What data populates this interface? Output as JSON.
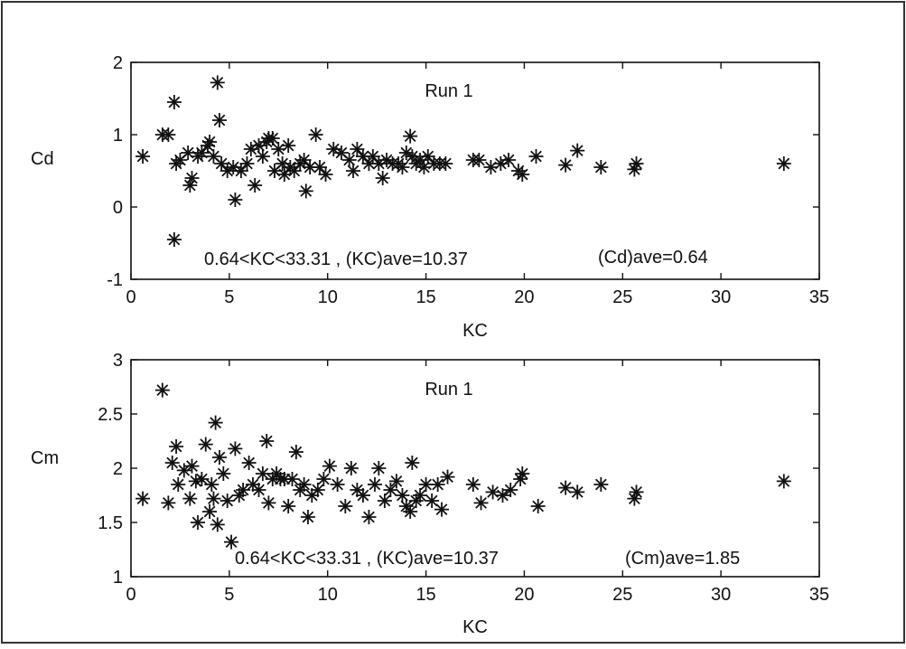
{
  "chart_data": [
    {
      "type": "scatter",
      "title": "Run 1",
      "xlabel": "KC",
      "ylabel": "Cd",
      "xlim": [
        0,
        35
      ],
      "ylim": [
        -1,
        2
      ],
      "xticks": [
        "0",
        "5",
        "10",
        "15",
        "20",
        "25",
        "30",
        "35"
      ],
      "yticks": [
        "-1",
        "0",
        "1",
        "2"
      ],
      "annotations": [
        "0.64<KC<33.31 , (KC)ave=10.37",
        "(Cd)ave=0.64"
      ],
      "grid": false,
      "marker": "asterisk",
      "points": [
        [
          0.6,
          0.7
        ],
        [
          1.6,
          1.0
        ],
        [
          1.9,
          1.0
        ],
        [
          2.2,
          1.45
        ],
        [
          2.3,
          0.6
        ],
        [
          2.2,
          -0.45
        ],
        [
          2.5,
          0.65
        ],
        [
          2.9,
          0.75
        ],
        [
          3.0,
          0.3
        ],
        [
          3.1,
          0.4
        ],
        [
          3.4,
          0.7
        ],
        [
          3.6,
          0.75
        ],
        [
          3.9,
          0.85
        ],
        [
          4.0,
          0.9
        ],
        [
          4.2,
          0.7
        ],
        [
          4.4,
          1.72
        ],
        [
          4.5,
          1.2
        ],
        [
          4.6,
          0.6
        ],
        [
          4.9,
          0.5
        ],
        [
          5.2,
          0.55
        ],
        [
          5.3,
          0.1
        ],
        [
          5.6,
          0.5
        ],
        [
          5.9,
          0.6
        ],
        [
          6.1,
          0.8
        ],
        [
          6.3,
          0.3
        ],
        [
          6.5,
          0.85
        ],
        [
          6.7,
          0.7
        ],
        [
          6.9,
          0.9
        ],
        [
          7.0,
          0.95
        ],
        [
          7.2,
          0.95
        ],
        [
          7.3,
          0.5
        ],
        [
          7.5,
          0.8
        ],
        [
          7.7,
          0.6
        ],
        [
          7.8,
          0.45
        ],
        [
          8.0,
          0.85
        ],
        [
          8.1,
          0.55
        ],
        [
          8.3,
          0.5
        ],
        [
          8.6,
          0.6
        ],
        [
          8.8,
          0.65
        ],
        [
          8.9,
          0.22
        ],
        [
          9.1,
          0.55
        ],
        [
          9.4,
          1.0
        ],
        [
          9.6,
          0.55
        ],
        [
          9.9,
          0.45
        ],
        [
          10.3,
          0.8
        ],
        [
          10.7,
          0.75
        ],
        [
          11.1,
          0.65
        ],
        [
          11.3,
          0.5
        ],
        [
          11.5,
          0.8
        ],
        [
          11.8,
          0.7
        ],
        [
          12.1,
          0.6
        ],
        [
          12.3,
          0.7
        ],
        [
          12.6,
          0.6
        ],
        [
          12.8,
          0.4
        ],
        [
          13.0,
          0.65
        ],
        [
          13.3,
          0.6
        ],
        [
          13.6,
          0.6
        ],
        [
          13.8,
          0.55
        ],
        [
          14.0,
          0.75
        ],
        [
          14.2,
          0.98
        ],
        [
          14.3,
          0.7
        ],
        [
          14.5,
          0.6
        ],
        [
          14.7,
          0.65
        ],
        [
          14.9,
          0.55
        ],
        [
          15.1,
          0.7
        ],
        [
          15.4,
          0.6
        ],
        [
          15.7,
          0.6
        ],
        [
          16.0,
          0.6
        ],
        [
          17.4,
          0.65
        ],
        [
          17.7,
          0.65
        ],
        [
          18.3,
          0.55
        ],
        [
          18.8,
          0.6
        ],
        [
          19.2,
          0.65
        ],
        [
          19.7,
          0.5
        ],
        [
          19.9,
          0.45
        ],
        [
          20.6,
          0.7
        ],
        [
          22.1,
          0.58
        ],
        [
          22.7,
          0.78
        ],
        [
          23.9,
          0.55
        ],
        [
          25.6,
          0.52
        ],
        [
          25.7,
          0.6
        ],
        [
          33.2,
          0.6
        ]
      ]
    },
    {
      "type": "scatter",
      "title": "Run 1",
      "xlabel": "KC",
      "ylabel": "Cm",
      "xlim": [
        0,
        35
      ],
      "ylim": [
        1,
        3
      ],
      "xticks": [
        "0",
        "5",
        "10",
        "15",
        "20",
        "25",
        "30",
        "35"
      ],
      "yticks": [
        "1",
        "1.5",
        "2",
        "2.5",
        "3"
      ],
      "annotations": [
        "0.64<KC<33.31 , (KC)ave=10.37",
        "(Cm)ave=1.85"
      ],
      "grid": false,
      "marker": "asterisk",
      "points": [
        [
          0.6,
          1.72
        ],
        [
          1.6,
          2.72
        ],
        [
          1.9,
          1.68
        ],
        [
          2.1,
          2.05
        ],
        [
          2.3,
          2.2
        ],
        [
          2.4,
          1.85
        ],
        [
          2.7,
          1.98
        ],
        [
          3.0,
          1.72
        ],
        [
          3.1,
          2.02
        ],
        [
          3.3,
          1.88
        ],
        [
          3.4,
          1.5
        ],
        [
          3.6,
          1.9
        ],
        [
          3.8,
          2.22
        ],
        [
          4.0,
          1.6
        ],
        [
          4.1,
          1.85
        ],
        [
          4.2,
          1.72
        ],
        [
          4.3,
          2.42
        ],
        [
          4.4,
          1.48
        ],
        [
          4.5,
          2.1
        ],
        [
          4.7,
          1.95
        ],
        [
          4.9,
          1.7
        ],
        [
          5.1,
          1.32
        ],
        [
          5.3,
          2.18
        ],
        [
          5.5,
          1.75
        ],
        [
          5.7,
          1.8
        ],
        [
          6.0,
          2.05
        ],
        [
          6.2,
          1.85
        ],
        [
          6.5,
          1.8
        ],
        [
          6.7,
          1.95
        ],
        [
          6.9,
          2.25
        ],
        [
          7.0,
          1.68
        ],
        [
          7.2,
          1.9
        ],
        [
          7.4,
          1.95
        ],
        [
          7.6,
          1.9
        ],
        [
          7.8,
          1.9
        ],
        [
          8.0,
          1.65
        ],
        [
          8.2,
          1.9
        ],
        [
          8.4,
          2.15
        ],
        [
          8.6,
          1.8
        ],
        [
          8.8,
          1.85
        ],
        [
          9.0,
          1.55
        ],
        [
          9.2,
          1.75
        ],
        [
          9.5,
          1.8
        ],
        [
          9.8,
          1.9
        ],
        [
          10.1,
          2.02
        ],
        [
          10.5,
          1.85
        ],
        [
          10.9,
          1.65
        ],
        [
          11.2,
          2.0
        ],
        [
          11.5,
          1.8
        ],
        [
          11.8,
          1.75
        ],
        [
          12.1,
          1.55
        ],
        [
          12.4,
          1.85
        ],
        [
          12.6,
          2.0
        ],
        [
          12.9,
          1.7
        ],
        [
          13.2,
          1.8
        ],
        [
          13.5,
          1.88
        ],
        [
          13.8,
          1.75
        ],
        [
          14.0,
          1.65
        ],
        [
          14.2,
          1.6
        ],
        [
          14.3,
          2.05
        ],
        [
          14.5,
          1.7
        ],
        [
          14.7,
          1.75
        ],
        [
          15.0,
          1.85
        ],
        [
          15.3,
          1.7
        ],
        [
          15.6,
          1.85
        ],
        [
          15.8,
          1.62
        ],
        [
          16.1,
          1.92
        ],
        [
          17.4,
          1.85
        ],
        [
          17.8,
          1.68
        ],
        [
          18.4,
          1.78
        ],
        [
          18.9,
          1.75
        ],
        [
          19.3,
          1.8
        ],
        [
          19.8,
          1.9
        ],
        [
          19.9,
          1.95
        ],
        [
          20.7,
          1.65
        ],
        [
          22.1,
          1.82
        ],
        [
          22.7,
          1.78
        ],
        [
          23.9,
          1.85
        ],
        [
          25.6,
          1.72
        ],
        [
          25.7,
          1.78
        ],
        [
          33.2,
          1.88
        ]
      ]
    }
  ]
}
